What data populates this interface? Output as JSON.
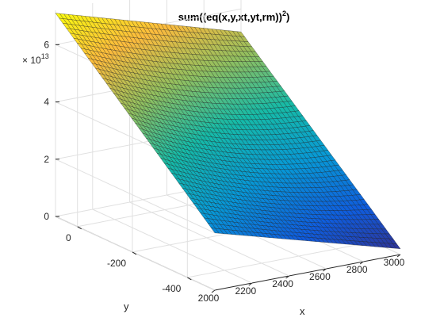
{
  "chart_data": {
    "type": "surface",
    "title_main": "sum((eq(x,y,xt,yt,rm))",
    "title_sup": "2",
    "title_tail": ")",
    "xlabel": "x",
    "ylabel": "y",
    "zlabel": "",
    "z_multiplier_base": "× 10",
    "z_multiplier_exp": "13",
    "x_ticks": [
      "2000",
      "2200",
      "2400",
      "2600",
      "2800",
      "3000"
    ],
    "y_ticks": [
      "0",
      "-200",
      "-400"
    ],
    "z_ticks": [
      "0",
      "2",
      "4",
      "6"
    ],
    "xlim": [
      2000,
      3000
    ],
    "ylim": [
      -500,
      80
    ],
    "zlim": [
      0,
      7.2
    ],
    "z_scale": 10000000000000.0,
    "grid": true,
    "colormap": "parula",
    "corner_values": {
      "x_min_y_max": 7.1,
      "x_max_y_max": 5.2,
      "x_min_y_min": 2.0,
      "x_max_y_min": 0.2,
      "minimum": 0.05
    }
  }
}
